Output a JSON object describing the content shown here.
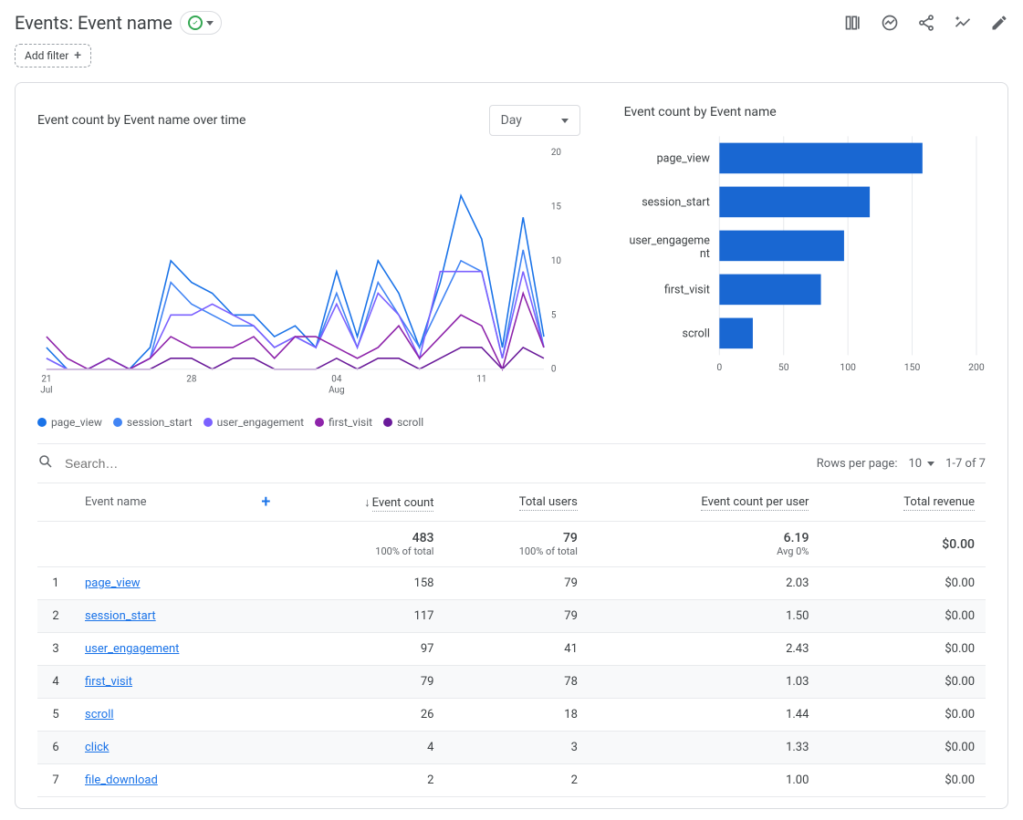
{
  "header": {
    "title": "Events: Event name"
  },
  "filter_button": "Add filter",
  "linePanel": {
    "title": "Event count by Event name over time",
    "timeSelect": "Day",
    "ylim": [
      0,
      20
    ],
    "ytick_step": 5,
    "grid_color": "#e8eaed",
    "dates": [
      "21",
      "22",
      "23",
      "24",
      "25",
      "26",
      "27",
      "28",
      "29",
      "30",
      "31",
      "01",
      "02",
      "03",
      "04",
      "05",
      "06",
      "07",
      "08",
      "09",
      "10",
      "11",
      "12",
      "13",
      "14"
    ],
    "xAxisTicks": [
      {
        "i": 0,
        "top": "21",
        "bottom": "Jul"
      },
      {
        "i": 7,
        "top": "28",
        "bottom": ""
      },
      {
        "i": 14,
        "top": "04",
        "bottom": "Aug"
      },
      {
        "i": 21,
        "top": "11",
        "bottom": ""
      }
    ],
    "series": [
      {
        "name": "page_view",
        "color": "#1a73e8",
        "values": [
          2,
          0,
          0,
          1,
          0,
          2,
          10,
          8,
          7,
          5,
          5,
          3,
          4,
          2,
          9,
          3,
          10,
          7,
          2,
          8,
          16,
          12,
          2,
          14,
          3
        ]
      },
      {
        "name": "session_start",
        "color": "#4285f4",
        "values": [
          1,
          0,
          0,
          1,
          0,
          1,
          8,
          6,
          5,
          4,
          4,
          2,
          3,
          2,
          7,
          2,
          8,
          5,
          2,
          6,
          10,
          9,
          1,
          11,
          2
        ]
      },
      {
        "name": "user_engagement",
        "color": "#7b61ff",
        "values": [
          1,
          0,
          0,
          0,
          0,
          1,
          5,
          5,
          6,
          5,
          4,
          2,
          3,
          2,
          6,
          2,
          7,
          5,
          1,
          9,
          9,
          9,
          1,
          9,
          2
        ]
      },
      {
        "name": "first_visit",
        "color": "#8e24aa",
        "values": [
          3,
          1,
          0,
          1,
          0,
          1,
          3,
          2,
          2,
          2,
          3,
          1,
          3,
          3,
          2,
          1,
          2,
          4,
          1,
          3,
          5,
          4,
          0,
          7,
          2
        ]
      },
      {
        "name": "scroll",
        "color": "#6a1b9a",
        "values": [
          0,
          0,
          0,
          0,
          0,
          0,
          1,
          1,
          0,
          1,
          1,
          0,
          0,
          0,
          1,
          0,
          1,
          1,
          0,
          1,
          2,
          2,
          0,
          2,
          1
        ]
      }
    ]
  },
  "barPanel": {
    "title": "Event count by Event name",
    "xlim": [
      0,
      200
    ],
    "xtick_step": 50,
    "bar_color": "#1967d2",
    "categories": [
      {
        "label": "page_view",
        "value": 158
      },
      {
        "label": "session_start",
        "value": 117
      },
      {
        "label": "user_engageme\nnt",
        "value": 97
      },
      {
        "label": "first_visit",
        "value": 79
      },
      {
        "label": "scroll",
        "value": 26
      }
    ]
  },
  "searchPlaceholder": "Search…",
  "table": {
    "rowsPerPageLabel": "Rows per page:",
    "rowsPerPage": "10",
    "rangeText": "1-7 of 7",
    "columns": [
      "Event name",
      "Event count",
      "Total users",
      "Event count per user",
      "Total revenue"
    ],
    "summary": {
      "event_count": {
        "value": "483",
        "sub": "100% of total"
      },
      "total_users": {
        "value": "79",
        "sub": "100% of total"
      },
      "per_user": {
        "value": "6.19",
        "sub": "Avg 0%"
      },
      "revenue": {
        "value": "$0.00",
        "sub": ""
      }
    },
    "rows": [
      {
        "n": 1,
        "name": "page_view",
        "event_count": "158",
        "total_users": "79",
        "per_user": "2.03",
        "revenue": "$0.00"
      },
      {
        "n": 2,
        "name": "session_start",
        "event_count": "117",
        "total_users": "79",
        "per_user": "1.50",
        "revenue": "$0.00"
      },
      {
        "n": 3,
        "name": "user_engagement",
        "event_count": "97",
        "total_users": "41",
        "per_user": "2.43",
        "revenue": "$0.00"
      },
      {
        "n": 4,
        "name": "first_visit",
        "event_count": "79",
        "total_users": "78",
        "per_user": "1.03",
        "revenue": "$0.00"
      },
      {
        "n": 5,
        "name": "scroll",
        "event_count": "26",
        "total_users": "18",
        "per_user": "1.44",
        "revenue": "$0.00"
      },
      {
        "n": 6,
        "name": "click",
        "event_count": "4",
        "total_users": "3",
        "per_user": "1.33",
        "revenue": "$0.00"
      },
      {
        "n": 7,
        "name": "file_download",
        "event_count": "2",
        "total_users": "2",
        "per_user": "1.00",
        "revenue": "$0.00"
      }
    ]
  }
}
